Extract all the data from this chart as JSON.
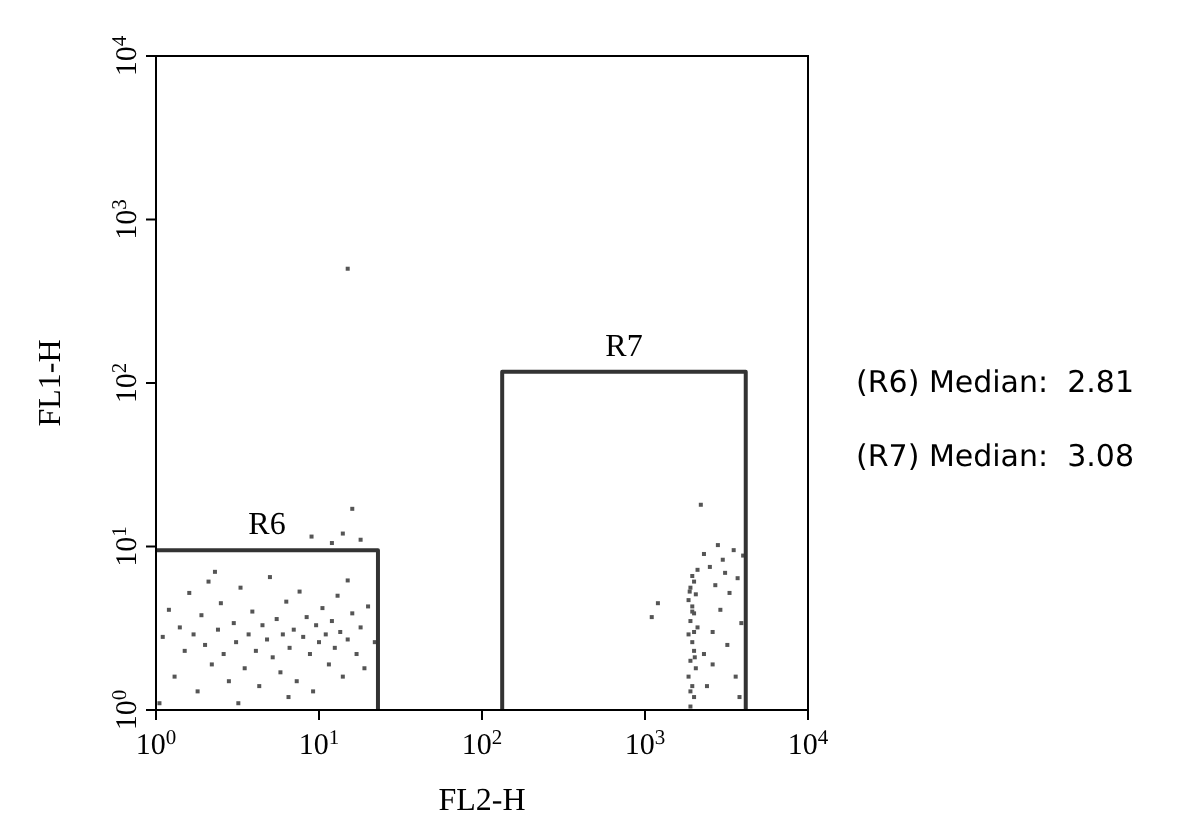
{
  "chart_data": {
    "type": "scatter",
    "xlabel": "FL2-H",
    "ylabel": "FL1-H",
    "log": "xy",
    "grid": false,
    "xlim": [
      1,
      10000
    ],
    "ylim": [
      1,
      10000
    ],
    "xticks": [
      {
        "value": 1,
        "label": "10$^{0}$"
      },
      {
        "value": 10,
        "label": "10$^{1}$"
      },
      {
        "value": 100,
        "label": "10$^{2}$"
      },
      {
        "value": 1000,
        "label": "10$^{3}$"
      },
      {
        "value": 10000,
        "label": "10$^{4}$"
      }
    ],
    "yticks": [
      {
        "value": 1,
        "label": "10$^{0}$"
      },
      {
        "value": 10,
        "label": "10$^{1}$"
      },
      {
        "value": 100,
        "label": "10$^{2}$"
      },
      {
        "value": 1000,
        "label": "10$^{3}$"
      },
      {
        "value": 10000,
        "label": "10$^{4}$"
      }
    ],
    "series": [
      {
        "marker": "square",
        "color": "#555555",
        "x": [
          1.1,
          1.2,
          1.3,
          1.4,
          1.5,
          1.6,
          1.7,
          1.8,
          1.9,
          2.0,
          2.1,
          2.2,
          2.4,
          2.5,
          2.6,
          2.8,
          3.0,
          3.1,
          3.3,
          3.5,
          3.7,
          3.9,
          4.1,
          4.3,
          4.5,
          4.8,
          5.0,
          5.2,
          5.5,
          5.8,
          6.0,
          6.3,
          6.6,
          7.0,
          7.3,
          7.6,
          8.0,
          8.4,
          8.8,
          9.2,
          9.6,
          10,
          10.5,
          11,
          11.5,
          12,
          12.5,
          13,
          13.5,
          14,
          15,
          16,
          17,
          18,
          19,
          20,
          22,
          1.05,
          3.2,
          6.5,
          15,
          2.3,
          15,
          16,
          14,
          18,
          9,
          12,
          1900,
          2000,
          1950,
          1850,
          2050,
          1900,
          2000,
          1950,
          1850,
          2100,
          1900,
          2000,
          1950,
          1850,
          2050,
          1900,
          2000,
          1950,
          2100,
          1900,
          2000,
          1950,
          1880,
          2020,
          2300,
          2600,
          2900,
          3300,
          3700,
          2500,
          3000,
          3500,
          2800,
          3900,
          3600,
          2400,
          3200,
          2700,
          3100,
          4000,
          2300,
          2200,
          1200,
          1100,
          3800,
          2600
        ],
        "values": [
          2.8,
          4.1,
          1.6,
          3.2,
          2.3,
          5.2,
          2.9,
          1.3,
          3.8,
          2.5,
          6.1,
          1.9,
          3.1,
          4.5,
          2.2,
          1.5,
          3.4,
          2.6,
          5.6,
          1.8,
          2.9,
          4.0,
          2.3,
          1.4,
          3.3,
          2.7,
          6.5,
          2.1,
          3.6,
          1.7,
          2.9,
          4.6,
          2.4,
          3.1,
          1.5,
          5.3,
          2.8,
          3.7,
          2.2,
          1.3,
          3.3,
          2.6,
          4.2,
          2.9,
          1.9,
          3.5,
          2.4,
          5.0,
          3.0,
          1.6,
          2.7,
          3.9,
          2.2,
          3.2,
          1.8,
          4.3,
          2.6,
          1.1,
          1.1,
          1.2,
          6.2,
          7.0,
          500,
          17,
          12,
          11,
          11.5,
          10.5,
          1.05,
          1.2,
          1.4,
          1.6,
          1.8,
          2.0,
          2.3,
          2.6,
          2.9,
          3.2,
          3.5,
          3.9,
          4.3,
          4.7,
          5.1,
          5.6,
          6.1,
          6.6,
          7.2,
          1.3,
          3.0,
          4.0,
          5.3,
          2.1,
          2.2,
          3.0,
          4.1,
          5.2,
          6.4,
          7.5,
          8.3,
          9.5,
          10.2,
          3.4,
          1.6,
          1.4,
          2.5,
          5.8,
          6.9,
          8.8,
          9.0,
          18,
          4.5,
          3.7,
          1.2,
          1.9
        ]
      },
      {
        "type": "line",
        "name": "R6",
        "color": "#333333",
        "x": [
          1,
          23,
          23
        ],
        "values": [
          9.5,
          9.5,
          1
        ]
      },
      {
        "type": "line",
        "name": "R7",
        "color": "#333333",
        "x": [
          133,
          133,
          4150,
          4150
        ],
        "values": [
          1,
          117,
          117,
          1
        ]
      }
    ],
    "annotations": [
      "(R6) Median:  2.81",
      "(R7) Median:  3.08"
    ]
  }
}
